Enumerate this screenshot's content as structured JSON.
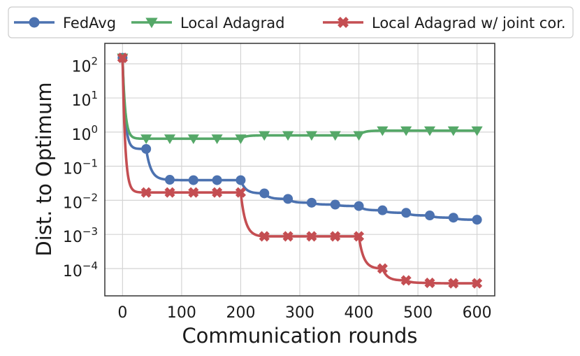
{
  "chart_data": {
    "type": "line",
    "xlabel": "Communication rounds",
    "ylabel": "Dist. to Optimum",
    "xlim": [
      -30,
      630
    ],
    "ylim_exponent": [
      -4.8,
      2.6
    ],
    "y_scale": "log",
    "grid": true,
    "legend_position": "top",
    "x_ticks": [
      0,
      100,
      200,
      300,
      400,
      500,
      600
    ],
    "y_tick_exponents": [
      2,
      1,
      0,
      -1,
      -2,
      -3,
      -4
    ],
    "series": [
      {
        "name": "FedAvg",
        "color": "#4c72b0",
        "marker": "circle",
        "x": [
          0,
          40,
          80,
          120,
          160,
          200,
          240,
          280,
          320,
          360,
          400,
          440,
          480,
          520,
          560,
          600
        ],
        "y": [
          150,
          0.32,
          0.04,
          0.039,
          0.039,
          0.039,
          0.016,
          0.011,
          0.0085,
          0.0075,
          0.0068,
          0.0051,
          0.0043,
          0.0036,
          0.0031,
          0.0027
        ]
      },
      {
        "name": "Local Adagrad",
        "color": "#55a868",
        "marker": "triangle-down",
        "x": [
          0,
          40,
          80,
          120,
          160,
          200,
          240,
          280,
          320,
          360,
          400,
          440,
          480,
          520,
          560,
          600
        ],
        "y": [
          150,
          0.64,
          0.64,
          0.64,
          0.64,
          0.64,
          0.8,
          0.8,
          0.8,
          0.8,
          0.8,
          1.1,
          1.1,
          1.1,
          1.1,
          1.1
        ]
      },
      {
        "name": "Local Adagrad w/ joint cor.",
        "color": "#c44e52",
        "marker": "x",
        "x": [
          0,
          40,
          80,
          120,
          160,
          200,
          240,
          280,
          320,
          360,
          400,
          440,
          480,
          520,
          560,
          600
        ],
        "y": [
          150,
          0.017,
          0.017,
          0.017,
          0.017,
          0.017,
          0.00088,
          0.00088,
          0.00088,
          0.00088,
          0.00088,
          0.0001,
          4.5e-05,
          3.8e-05,
          3.7e-05,
          3.7e-05
        ]
      }
    ]
  }
}
